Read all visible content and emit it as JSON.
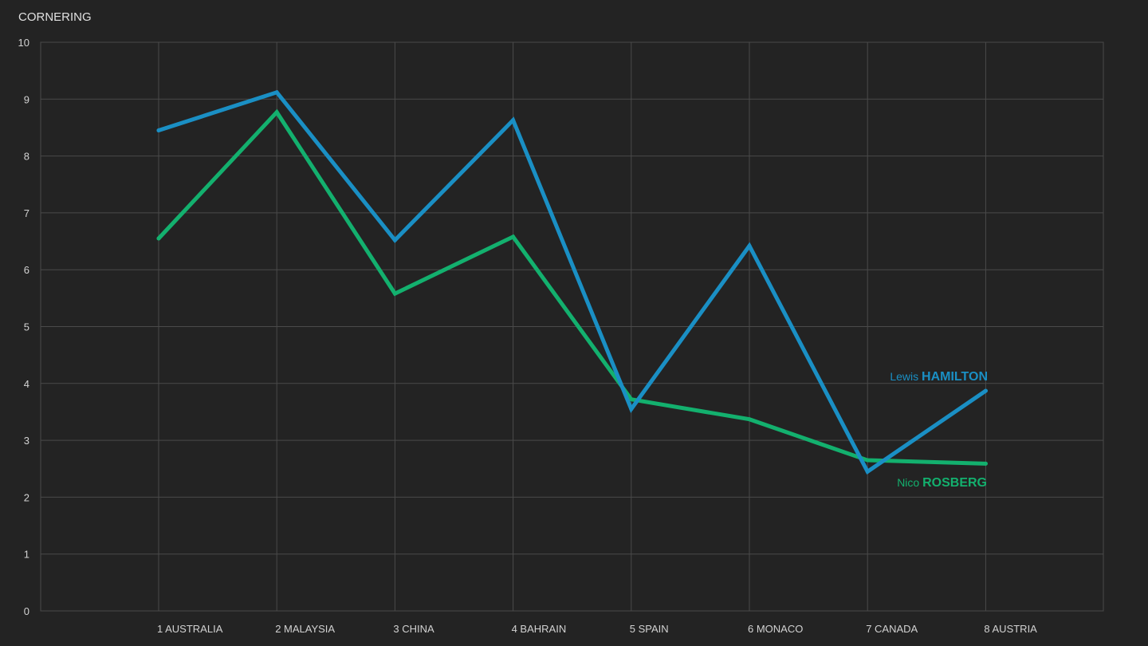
{
  "chart_data": {
    "type": "line",
    "title": "CORNERING",
    "categories": [
      "1 AUSTRALIA",
      "2 MALAYSIA",
      "3 CHINA",
      "4 BAHRAIN",
      "5 SPAIN",
      "6 MONACO",
      "7 CANADA",
      "8 AUSTRIA"
    ],
    "ylim": [
      0,
      10
    ],
    "yticks": [
      0,
      1,
      2,
      3,
      4,
      5,
      6,
      7,
      8,
      9,
      10
    ],
    "grid": true,
    "series": [
      {
        "name": "Lewis HAMILTON",
        "first_name": "Lewis",
        "last_name": "HAMILTON",
        "color": "#1a8fc4",
        "values": [
          8.45,
          9.12,
          6.52,
          8.63,
          3.55,
          6.42,
          2.45,
          3.87
        ]
      },
      {
        "name": "Nico ROSBERG",
        "first_name": "Nico",
        "last_name": "ROSBERG",
        "color": "#13b06e",
        "values": [
          6.55,
          8.77,
          5.58,
          6.58,
          3.72,
          3.37,
          2.65,
          2.59
        ]
      }
    ]
  }
}
